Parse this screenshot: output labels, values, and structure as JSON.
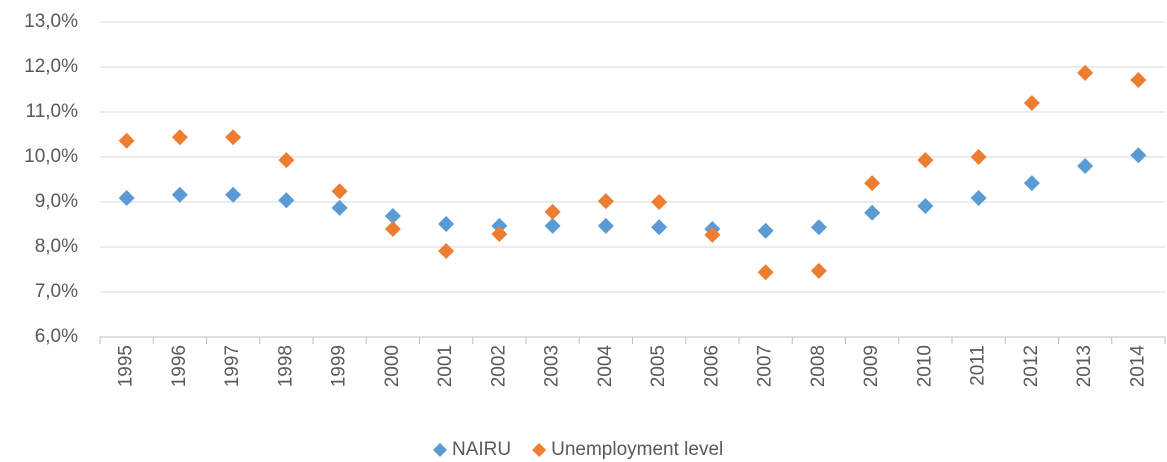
{
  "chart_data": {
    "type": "scatter",
    "categories": [
      "1995",
      "1996",
      "1997",
      "1998",
      "1999",
      "2000",
      "2001",
      "2002",
      "2003",
      "2004",
      "2005",
      "2006",
      "2007",
      "2008",
      "2009",
      "2010",
      "2011",
      "2012",
      "2013",
      "2014"
    ],
    "series": [
      {
        "name": "NAIRU",
        "color": "#5b9bd5",
        "values": [
          9.09,
          9.16,
          9.16,
          9.04,
          8.87,
          8.69,
          8.51,
          8.47,
          8.47,
          8.47,
          8.44,
          8.4,
          8.36,
          8.44,
          8.76,
          8.91,
          9.09,
          9.42,
          9.8,
          10.04
        ]
      },
      {
        "name": "Unemployment level",
        "color": "#ed7d31",
        "values": [
          10.36,
          10.44,
          10.44,
          9.93,
          9.24,
          8.4,
          7.91,
          8.29,
          8.78,
          9.02,
          9.0,
          8.27,
          7.44,
          7.47,
          9.42,
          9.93,
          10.0,
          11.2,
          11.87,
          11.71
        ]
      }
    ],
    "ylim": [
      6,
      13
    ],
    "yticks": [
      {
        "value": 6,
        "label": "6,0%"
      },
      {
        "value": 7,
        "label": "7,0%"
      },
      {
        "value": 8,
        "label": "8,0%"
      },
      {
        "value": 9,
        "label": "9,0%"
      },
      {
        "value": 10,
        "label": "10,0%"
      },
      {
        "value": 11,
        "label": "11,0%"
      },
      {
        "value": 12,
        "label": "12,0%"
      },
      {
        "value": 13,
        "label": "13,0%"
      }
    ],
    "grid": true,
    "legend": "bottom"
  }
}
